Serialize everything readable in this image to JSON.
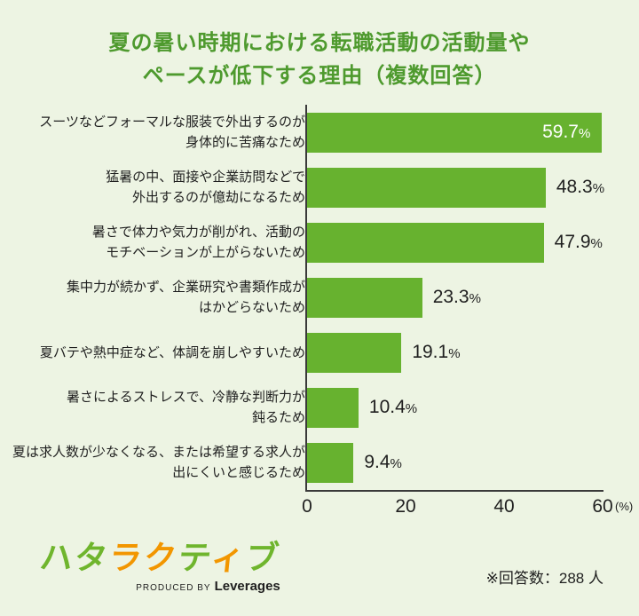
{
  "page": {
    "background_color": "#edf4e3",
    "title_line1": "夏の暑い時期における転職活動の活動量や",
    "title_line2": "ペースが低下する理由（複数回答）",
    "title_color": "#4e9a2e"
  },
  "chart_data": {
    "type": "bar",
    "orientation": "horizontal",
    "title": "夏の暑い時期における転職活動の活動量やペースが低下する理由（複数回答）",
    "xlim": [
      0,
      60
    ],
    "x_ticks": [
      0,
      20,
      40,
      60
    ],
    "x_unit": "(%)",
    "grid": false,
    "bar_color": "#67b22f",
    "percent_suffix": "%",
    "items": [
      {
        "label": "スーツなどフォーマルな服装で外出するのが\n身体的に苦痛なため",
        "value": 59.7,
        "value_inside": true
      },
      {
        "label": "猛暑の中、面接や企業訪問などで\n外出するのが億劫になるため",
        "value": 48.3,
        "value_inside": false
      },
      {
        "label": "暑さで体力や気力が削がれ、活動の\nモチベーションが上がらないため",
        "value": 47.9,
        "value_inside": false
      },
      {
        "label": "集中力が続かず、企業研究や書類作成が\nはかどらないため",
        "value": 23.3,
        "value_inside": false
      },
      {
        "label": "夏バテや熱中症など、体調を崩しやすいため",
        "value": 19.1,
        "value_inside": false
      },
      {
        "label": "暑さによるストレスで、冷静な判断力が\n鈍るため",
        "value": 10.4,
        "value_inside": false
      },
      {
        "label": "夏は求人数が少なくなる、または希望する求人が\n出にくいと感じるため",
        "value": 9.4,
        "value_inside": false
      }
    ]
  },
  "footer": {
    "logo_chars": [
      {
        "ch": "ハ",
        "color": "#6fb52d"
      },
      {
        "ch": "タ",
        "color": "#6fb52d"
      },
      {
        "ch": "ラ",
        "color": "#f29600"
      },
      {
        "ch": "ク",
        "color": "#f29600"
      },
      {
        "ch": "テ",
        "color": "#6fb52d"
      },
      {
        "ch": "ィ",
        "color": "#f29600"
      },
      {
        "ch": "ブ",
        "color": "#6fb52d"
      }
    ],
    "logo_text": "ハタラクティブ",
    "produced_by": "PRODUCED BY",
    "company": "Leverages",
    "note": "※回答数：288 人"
  }
}
